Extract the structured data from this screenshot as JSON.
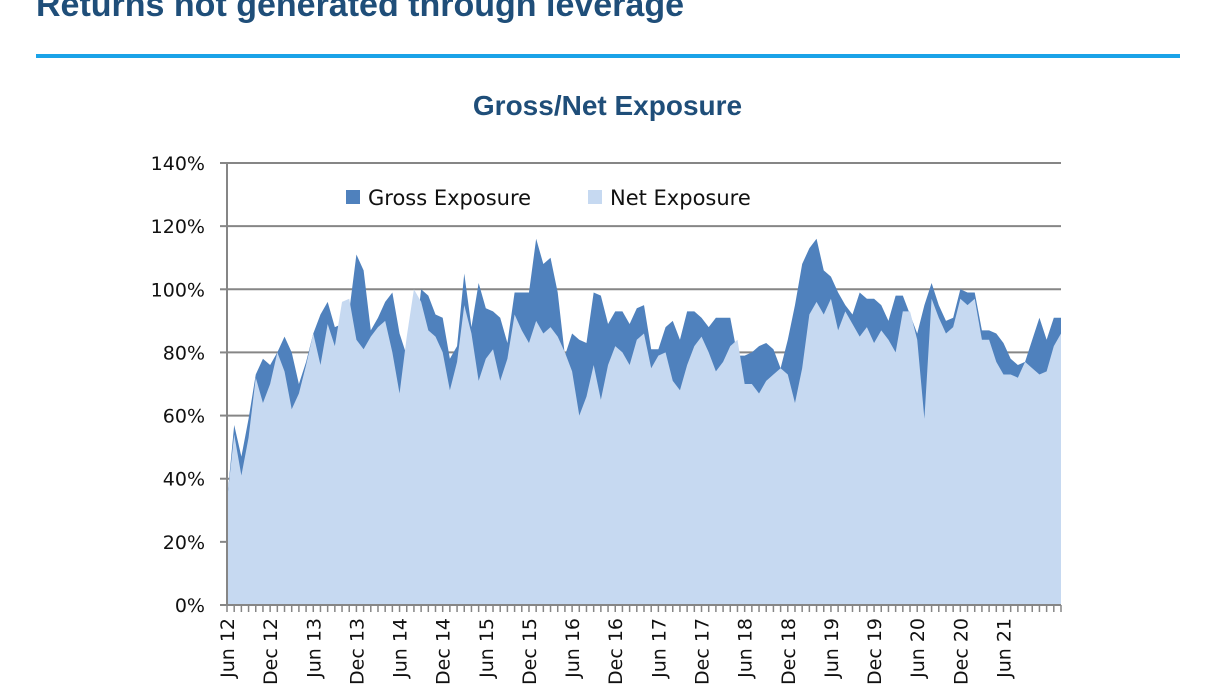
{
  "header": {
    "title": "Returns not generated through leverage"
  },
  "colors": {
    "title": "#1f4e79",
    "rule": "#1aa3e8",
    "gross": "#4f81bd",
    "net": "#c6d9f1",
    "grid": "#868686"
  },
  "chart_data": {
    "type": "area",
    "title": "Gross/Net Exposure",
    "xlabel": "",
    "ylabel": "",
    "ylim": [
      0,
      1.4
    ],
    "y_ticks": [
      {
        "value": 0,
        "label": "0%"
      },
      {
        "value": 0.2,
        "label": "20%"
      },
      {
        "value": 0.4,
        "label": "40%"
      },
      {
        "value": 0.6,
        "label": "60%"
      },
      {
        "value": 0.8,
        "label": "80%"
      },
      {
        "value": 1.0,
        "label": "100%"
      },
      {
        "value": 1.2,
        "label": "120%"
      },
      {
        "value": 1.4,
        "label": "140%"
      }
    ],
    "x_start": "2012-06",
    "x_tick_labels": [
      "Jun 12",
      "Dec 12",
      "Jun 13",
      "Dec 13",
      "Jun 14",
      "Dec 14",
      "Jun 15",
      "Dec 15",
      "Jun 16",
      "Dec 16",
      "Jun 17",
      "Dec 17",
      "Jun 18",
      "Dec 18",
      "Jun 19",
      "Dec 19",
      "Jun 20",
      "Dec 20",
      "Jun 21"
    ],
    "grid": true,
    "legend": {
      "position": "top-left-inside"
    },
    "series": [
      {
        "name": "Gross Exposure",
        "color": "#4f81bd",
        "values": [
          0.33,
          0.57,
          0.47,
          0.59,
          0.73,
          0.78,
          0.76,
          0.8,
          0.85,
          0.8,
          0.7,
          0.77,
          0.86,
          0.92,
          0.96,
          0.88,
          0.89,
          0.93,
          1.11,
          1.06,
          0.87,
          0.91,
          0.96,
          0.99,
          0.86,
          0.79,
          0.8,
          1.0,
          0.98,
          0.92,
          0.91,
          0.78,
          0.82,
          1.05,
          0.88,
          1.02,
          0.94,
          0.93,
          0.91,
          0.83,
          0.99,
          0.99,
          0.99,
          1.16,
          1.08,
          1.1,
          0.99,
          0.79,
          0.86,
          0.84,
          0.83,
          0.99,
          0.98,
          0.89,
          0.93,
          0.93,
          0.89,
          0.94,
          0.95,
          0.81,
          0.81,
          0.88,
          0.9,
          0.84,
          0.93,
          0.93,
          0.91,
          0.88,
          0.91,
          0.91,
          0.91,
          0.79,
          0.79,
          0.8,
          0.82,
          0.83,
          0.81,
          0.75,
          0.84,
          0.95,
          1.08,
          1.13,
          1.16,
          1.06,
          1.04,
          0.99,
          0.95,
          0.92,
          0.99,
          0.97,
          0.97,
          0.95,
          0.9,
          0.98,
          0.98,
          0.92,
          0.86,
          0.95,
          1.02,
          0.95,
          0.9,
          0.91,
          1.0,
          0.99,
          0.99,
          0.87,
          0.87,
          0.86,
          0.83,
          0.78,
          0.76,
          0.77,
          0.84,
          0.91,
          0.84,
          0.91,
          0.91
        ]
      },
      {
        "name": "Net Exposure",
        "color": "#c6d9f1",
        "values": [
          0.33,
          0.54,
          0.41,
          0.53,
          0.72,
          0.64,
          0.7,
          0.8,
          0.74,
          0.62,
          0.67,
          0.76,
          0.86,
          0.76,
          0.89,
          0.82,
          0.96,
          0.97,
          0.84,
          0.81,
          0.85,
          0.88,
          0.9,
          0.8,
          0.67,
          0.85,
          1.0,
          0.96,
          0.87,
          0.85,
          0.8,
          0.68,
          0.77,
          0.95,
          0.86,
          0.71,
          0.78,
          0.81,
          0.71,
          0.78,
          0.92,
          0.87,
          0.83,
          0.9,
          0.86,
          0.88,
          0.85,
          0.8,
          0.74,
          0.6,
          0.66,
          0.76,
          0.65,
          0.76,
          0.82,
          0.8,
          0.76,
          0.84,
          0.86,
          0.75,
          0.79,
          0.8,
          0.71,
          0.68,
          0.76,
          0.82,
          0.85,
          0.8,
          0.74,
          0.77,
          0.82,
          0.84,
          0.7,
          0.7,
          0.67,
          0.71,
          0.73,
          0.75,
          0.73,
          0.64,
          0.75,
          0.92,
          0.96,
          0.92,
          0.97,
          0.87,
          0.93,
          0.89,
          0.85,
          0.88,
          0.83,
          0.87,
          0.84,
          0.8,
          0.93,
          0.93,
          0.84,
          0.59,
          0.97,
          0.91,
          0.86,
          0.88,
          0.97,
          0.95,
          0.97,
          0.84,
          0.84,
          0.77,
          0.73,
          0.73,
          0.72,
          0.77,
          0.75,
          0.73,
          0.74,
          0.82,
          0.86
        ]
      }
    ]
  }
}
